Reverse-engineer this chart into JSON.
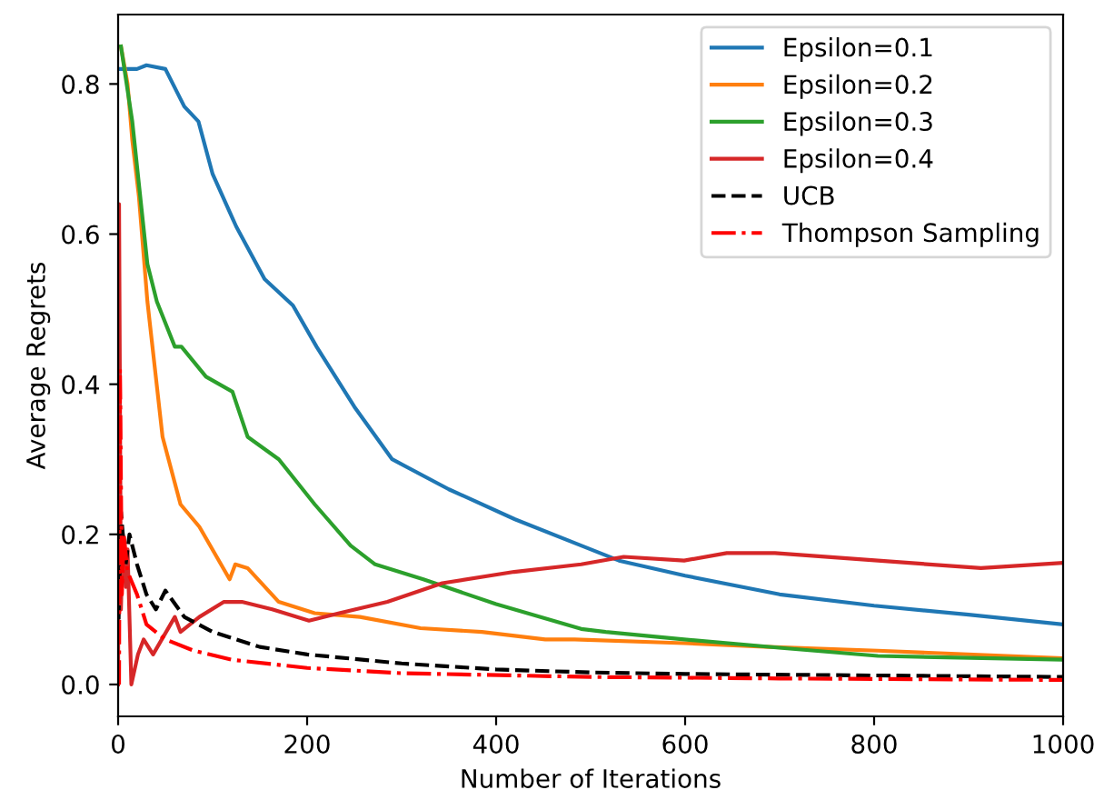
{
  "chart_data": {
    "type": "line",
    "xlabel": "Number of Iterations",
    "ylabel": "Average Regrets",
    "xlim": [
      0,
      1000
    ],
    "ylim": [
      -0.0425,
      0.8925
    ],
    "xticks": [
      0,
      200,
      400,
      600,
      800,
      1000
    ],
    "yticks": [
      {
        "value": 0,
        "label": "0.0"
      },
      0.2,
      0.4,
      0.6,
      0.8
    ],
    "grid": false,
    "legend": "top right",
    "series": [
      {
        "name": "Epsilon=0.1",
        "color": "#1f77b4",
        "line_style": "solid",
        "x": [
          0,
          20,
          30,
          50,
          70,
          85,
          100,
          125,
          155,
          185,
          210,
          250,
          290,
          350,
          420,
          490,
          530,
          600,
          700,
          800,
          900,
          1000
        ],
        "values": [
          0.82,
          0.82,
          0.825,
          0.82,
          0.77,
          0.75,
          0.68,
          0.61,
          0.54,
          0.505,
          0.45,
          0.37,
          0.3,
          0.26,
          0.22,
          0.185,
          0.165,
          0.145,
          0.12,
          0.105,
          0.093,
          0.08
        ]
      },
      {
        "name": "Epsilon=0.2",
        "color": "#ff7f0e",
        "line_style": "solid",
        "x": [
          3,
          10,
          15,
          22,
          31,
          47,
          66,
          86,
          118,
          124,
          137,
          170,
          208,
          256,
          320,
          385,
          452,
          483,
          599,
          689,
          804,
          1000
        ],
        "values": [
          0.85,
          0.8,
          0.725,
          0.65,
          0.51,
          0.33,
          0.24,
          0.21,
          0.14,
          0.16,
          0.155,
          0.11,
          0.095,
          0.09,
          0.075,
          0.07,
          0.06,
          0.06,
          0.055,
          0.05,
          0.045,
          0.035
        ]
      },
      {
        "name": "Epsilon=0.3",
        "color": "#2ca02c",
        "line_style": "solid",
        "x": [
          3,
          15,
          31,
          41,
          60,
          67,
          93,
          121,
          137,
          170,
          208,
          246,
          272,
          323,
          400,
          490,
          516,
          599,
          708,
          804,
          1000
        ],
        "values": [
          0.85,
          0.75,
          0.56,
          0.51,
          0.45,
          0.45,
          0.41,
          0.39,
          0.33,
          0.3,
          0.24,
          0.185,
          0.16,
          0.14,
          0.107,
          0.074,
          0.07,
          0.06,
          0.048,
          0.038,
          0.033
        ]
      },
      {
        "name": "Epsilon=0.4",
        "color": "#d62728",
        "line_style": "solid",
        "x": [
          0,
          1,
          3,
          5,
          8,
          10,
          14,
          21,
          27,
          37,
          60,
          66,
          86,
          112,
          131,
          163,
          202,
          234,
          285,
          343,
          419,
          490,
          535,
          599,
          644,
          695,
          804,
          913,
          1000
        ],
        "values": [
          0,
          0.64,
          0.1,
          0.2,
          0.13,
          0.18,
          0.0,
          0.04,
          0.06,
          0.04,
          0.09,
          0.07,
          0.09,
          0.11,
          0.11,
          0.1,
          0.085,
          0.095,
          0.11,
          0.135,
          0.15,
          0.16,
          0.17,
          0.165,
          0.175,
          0.175,
          0.165,
          0.155,
          0.162
        ]
      },
      {
        "name": "UCB",
        "color": "#000000",
        "line_style": "dashed",
        "x": [
          0,
          3,
          5,
          8,
          12,
          20,
          30,
          40,
          50,
          70,
          100,
          150,
          200,
          300,
          400,
          500,
          600,
          800,
          1000
        ],
        "values": [
          0.06,
          0.23,
          0.2,
          0.16,
          0.2,
          0.16,
          0.12,
          0.1,
          0.125,
          0.09,
          0.07,
          0.05,
          0.04,
          0.028,
          0.02,
          0.016,
          0.014,
          0.012,
          0.01
        ]
      },
      {
        "name": "Thompson Sampling",
        "color": "#ff0000",
        "line_style": "dashdot",
        "x": [
          1,
          2,
          4,
          6,
          10,
          20,
          30,
          50,
          80,
          120,
          200,
          300,
          500,
          700,
          1000
        ],
        "values": [
          0.0,
          0.42,
          0.12,
          0.2,
          0.15,
          0.12,
          0.08,
          0.06,
          0.045,
          0.033,
          0.022,
          0.015,
          0.01,
          0.008,
          0.006
        ]
      }
    ]
  }
}
